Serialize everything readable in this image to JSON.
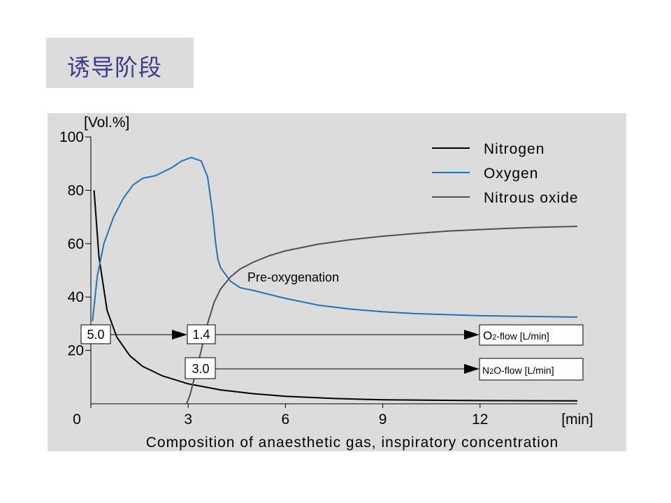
{
  "slide_title": "诱导阶段",
  "chart_data": {
    "type": "line",
    "title": "",
    "xlabel": "Composition of anaesthetic gas, inspiratory concentration",
    "x_unit": "[min]",
    "y_unit": "[Vol.%]",
    "xlim": [
      0,
      15
    ],
    "ylim": [
      0,
      100
    ],
    "x_ticks": [
      0,
      3,
      6,
      9,
      12
    ],
    "y_ticks": [
      20,
      40,
      60,
      80,
      100
    ],
    "legend_position": "top-right",
    "grid": false,
    "series": [
      {
        "name": "Nitrogen",
        "color": "#000000",
        "points": [
          [
            0.1,
            80
          ],
          [
            0.25,
            55
          ],
          [
            0.5,
            35
          ],
          [
            0.8,
            25
          ],
          [
            1.2,
            18
          ],
          [
            1.6,
            14
          ],
          [
            2.2,
            10.5
          ],
          [
            3,
            7.5
          ],
          [
            4,
            5.2
          ],
          [
            5,
            3.8
          ],
          [
            6,
            2.8
          ],
          [
            7.5,
            2
          ],
          [
            9,
            1.5
          ],
          [
            12,
            1.2
          ],
          [
            15,
            1.1
          ]
        ]
      },
      {
        "name": "Oxygen",
        "color": "#1f73b8",
        "points": [
          [
            0.05,
            31
          ],
          [
            0.2,
            48
          ],
          [
            0.4,
            60
          ],
          [
            0.7,
            70
          ],
          [
            1,
            77
          ],
          [
            1.3,
            82
          ],
          [
            1.6,
            84.5
          ],
          [
            2,
            85.5
          ],
          [
            2.5,
            88.5
          ],
          [
            2.8,
            91
          ],
          [
            3.1,
            92.3
          ],
          [
            3.4,
            91
          ],
          [
            3.6,
            85
          ],
          [
            3.75,
            72
          ],
          [
            3.85,
            60
          ],
          [
            3.92,
            54
          ],
          [
            4,
            51
          ],
          [
            4.3,
            46
          ],
          [
            4.6,
            43.5
          ],
          [
            5,
            42.5
          ],
          [
            5.5,
            41
          ],
          [
            6,
            39.5
          ],
          [
            7,
            37
          ],
          [
            8,
            35.5
          ],
          [
            9,
            34.5
          ],
          [
            10,
            33.8
          ],
          [
            12,
            33
          ],
          [
            15,
            32.5
          ]
        ]
      },
      {
        "name": "Nitrous oxide",
        "color": "#505050",
        "points": [
          [
            2.95,
            0
          ],
          [
            3.05,
            3
          ],
          [
            3.2,
            10
          ],
          [
            3.4,
            20
          ],
          [
            3.6,
            30
          ],
          [
            3.8,
            38
          ],
          [
            4,
            43
          ],
          [
            4.3,
            47.5
          ],
          [
            4.6,
            50.5
          ],
          [
            5,
            53
          ],
          [
            5.5,
            55.5
          ],
          [
            6,
            57.3
          ],
          [
            7,
            59.8
          ],
          [
            8,
            61.5
          ],
          [
            9,
            62.8
          ],
          [
            10,
            63.8
          ],
          [
            11,
            64.7
          ],
          [
            12,
            65.3
          ],
          [
            13,
            65.8
          ],
          [
            14,
            66.2
          ],
          [
            15,
            66.5
          ]
        ]
      }
    ],
    "annotations": {
      "pre_oxygenation": "Pre-oxygenation",
      "o2_flow_first": "5.0",
      "o2_flow_second": "1.4",
      "n2o_flow": "3.0",
      "o2_flow_label_main": "O",
      "o2_flow_label_sub": "2",
      "o2_flow_label_rest": "-flow [L/min]",
      "n2o_flow_label_main": "N",
      "n2o_flow_label_sub": "2",
      "n2o_flow_label_rest": "O-flow [L/min]"
    }
  }
}
